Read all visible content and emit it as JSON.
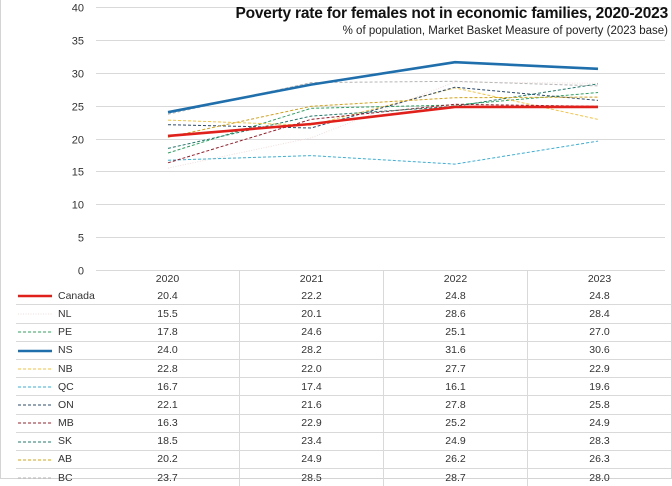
{
  "chart_data": {
    "type": "line",
    "title": "Poverty rate for females not in economic families, 2020-2023",
    "subtitle": "% of population, Market Basket Measure of poverty (2023 base)",
    "xlabel": "",
    "ylabel": "",
    "ylim": [
      0,
      40
    ],
    "yticks": [
      0,
      5,
      10,
      15,
      20,
      25,
      30,
      35,
      40
    ],
    "grid": true,
    "legend": "data-table-bottom",
    "categories": [
      "2020",
      "2021",
      "2022",
      "2023"
    ],
    "series": [
      {
        "name": "Canada",
        "values": [
          20.4,
          22.2,
          24.8,
          24.8
        ],
        "color": "#e0201b",
        "style": "solid-thick"
      },
      {
        "name": "NL",
        "values": [
          15.5,
          20.1,
          28.6,
          28.4
        ],
        "color": "#f2dede",
        "style": "dotted"
      },
      {
        "name": "PE",
        "values": [
          17.8,
          24.6,
          25.1,
          27.0
        ],
        "color": "#2ca25f",
        "style": "dashed"
      },
      {
        "name": "NS",
        "values": [
          24.0,
          28.2,
          31.6,
          30.6
        ],
        "color": "#1f6fad",
        "style": "solid-thick"
      },
      {
        "name": "NB",
        "values": [
          22.8,
          22.0,
          27.7,
          22.9
        ],
        "color": "#f5c242",
        "style": "dashed"
      },
      {
        "name": "QC",
        "values": [
          16.7,
          17.4,
          16.1,
          19.6
        ],
        "color": "#3aaed8",
        "style": "dashed"
      },
      {
        "name": "ON",
        "values": [
          22.1,
          21.6,
          27.8,
          25.8
        ],
        "color": "#2b4a6e",
        "style": "dashed"
      },
      {
        "name": "MB",
        "values": [
          16.3,
          22.9,
          25.2,
          24.9
        ],
        "color": "#9b1c2a",
        "style": "dashed"
      },
      {
        "name": "SK",
        "values": [
          18.5,
          23.4,
          24.9,
          28.3
        ],
        "color": "#1f7a6a",
        "style": "dashed"
      },
      {
        "name": "AB",
        "values": [
          20.2,
          24.9,
          26.2,
          26.3
        ],
        "color": "#d4a017",
        "style": "dashed"
      },
      {
        "name": "BC",
        "values": [
          23.7,
          28.5,
          28.7,
          28.0
        ],
        "color": "#b5b5b5",
        "style": "dashed"
      }
    ]
  }
}
